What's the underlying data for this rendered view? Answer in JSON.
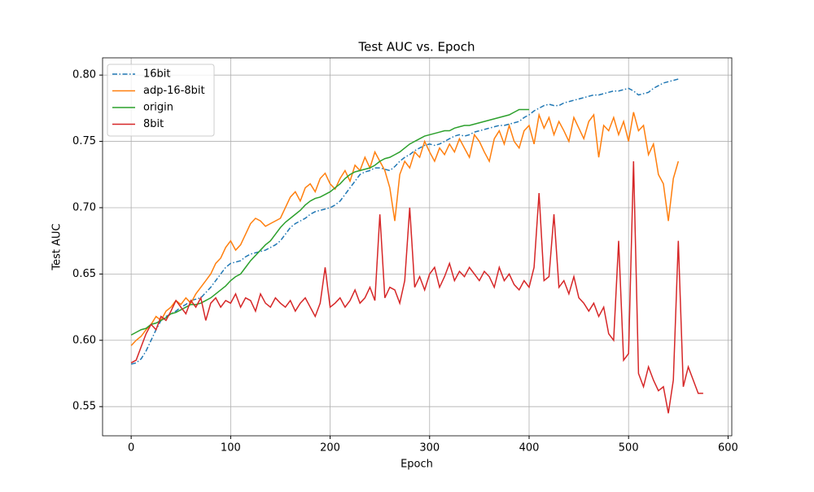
{
  "chart_data": {
    "type": "line",
    "title": "Test AUC vs. Epoch",
    "x_label": "Epoch",
    "y_label": "Test AUC",
    "x": [
      0,
      5,
      10,
      15,
      20,
      25,
      30,
      35,
      40,
      45,
      50,
      55,
      60,
      65,
      70,
      75,
      80,
      85,
      90,
      95,
      100,
      105,
      110,
      115,
      120,
      125,
      130,
      135,
      140,
      145,
      150,
      155,
      160,
      165,
      170,
      175,
      180,
      185,
      190,
      195,
      200,
      205,
      210,
      215,
      220,
      225,
      230,
      235,
      240,
      245,
      250,
      255,
      260,
      265,
      270,
      275,
      280,
      285,
      290,
      295,
      300,
      305,
      310,
      315,
      320,
      325,
      330,
      335,
      340,
      345,
      350,
      355,
      360,
      365,
      370,
      375,
      380,
      385,
      390,
      395,
      400,
      405,
      410,
      415,
      420,
      425,
      430,
      435,
      440,
      445,
      450,
      455,
      460,
      465,
      470,
      475,
      480,
      485,
      490,
      495,
      500,
      505,
      510,
      515,
      520,
      525,
      530,
      535,
      540,
      545,
      550,
      555,
      560,
      565,
      570,
      575
    ],
    "series": [
      {
        "name": "16bit",
        "color": "#1f77b4",
        "linestyle": "dashdot",
        "values": [
          0.582,
          0.583,
          0.586,
          0.592,
          0.6,
          0.608,
          0.615,
          0.618,
          0.62,
          0.622,
          0.625,
          0.627,
          0.63,
          0.631,
          0.632,
          0.636,
          0.64,
          0.645,
          0.65,
          0.655,
          0.658,
          0.659,
          0.66,
          0.663,
          0.665,
          0.666,
          0.667,
          0.668,
          0.67,
          0.672,
          0.675,
          0.68,
          0.685,
          0.688,
          0.69,
          0.692,
          0.695,
          0.697,
          0.698,
          0.699,
          0.7,
          0.702,
          0.705,
          0.71,
          0.715,
          0.72,
          0.725,
          0.727,
          0.728,
          0.73,
          0.73,
          0.729,
          0.728,
          0.731,
          0.735,
          0.738,
          0.74,
          0.743,
          0.745,
          0.747,
          0.748,
          0.747,
          0.748,
          0.75,
          0.752,
          0.754,
          0.755,
          0.754,
          0.755,
          0.757,
          0.758,
          0.759,
          0.76,
          0.761,
          0.762,
          0.762,
          0.763,
          0.764,
          0.765,
          0.768,
          0.77,
          0.773,
          0.775,
          0.777,
          0.778,
          0.777,
          0.777,
          0.779,
          0.78,
          0.781,
          0.782,
          0.783,
          0.784,
          0.785,
          0.785,
          0.786,
          0.787,
          0.788,
          0.788,
          0.789,
          0.79,
          0.788,
          0.785,
          0.786,
          0.787,
          0.79,
          0.792,
          0.794,
          0.795,
          0.796,
          0.797,
          null,
          null,
          null,
          null,
          null
        ]
      },
      {
        "name": "adp-16-8bit",
        "color": "#ff7f0e",
        "linestyle": "solid",
        "values": [
          0.596,
          0.6,
          0.603,
          0.608,
          0.612,
          0.618,
          0.615,
          0.622,
          0.625,
          0.63,
          0.627,
          0.632,
          0.628,
          0.635,
          0.64,
          0.645,
          0.65,
          0.658,
          0.662,
          0.67,
          0.675,
          0.668,
          0.672,
          0.68,
          0.688,
          0.692,
          0.69,
          0.686,
          0.688,
          0.69,
          0.692,
          0.7,
          0.708,
          0.712,
          0.705,
          0.715,
          0.718,
          0.712,
          0.722,
          0.726,
          0.718,
          0.714,
          0.722,
          0.728,
          0.72,
          0.732,
          0.728,
          0.738,
          0.73,
          0.742,
          0.735,
          0.728,
          0.715,
          0.69,
          0.725,
          0.735,
          0.73,
          0.742,
          0.738,
          0.75,
          0.742,
          0.735,
          0.745,
          0.74,
          0.748,
          0.742,
          0.752,
          0.745,
          0.738,
          0.755,
          0.75,
          0.742,
          0.735,
          0.752,
          0.758,
          0.748,
          0.762,
          0.75,
          0.745,
          0.758,
          0.762,
          0.748,
          0.77,
          0.76,
          0.768,
          0.755,
          0.765,
          0.758,
          0.75,
          0.768,
          0.76,
          0.752,
          0.765,
          0.77,
          0.738,
          0.762,
          0.758,
          0.768,
          0.755,
          0.765,
          0.75,
          0.772,
          0.758,
          0.762,
          0.74,
          0.748,
          0.725,
          0.718,
          0.69,
          0.722,
          0.735,
          null,
          null,
          null,
          null,
          null
        ]
      },
      {
        "name": "origin",
        "color": "#2ca02c",
        "linestyle": "solid",
        "values": [
          0.604,
          0.606,
          0.608,
          0.609,
          0.612,
          0.613,
          0.615,
          0.617,
          0.62,
          0.621,
          0.623,
          0.625,
          0.627,
          0.627,
          0.628,
          0.63,
          0.632,
          0.635,
          0.638,
          0.641,
          0.645,
          0.648,
          0.65,
          0.655,
          0.66,
          0.664,
          0.668,
          0.672,
          0.675,
          0.68,
          0.685,
          0.689,
          0.692,
          0.695,
          0.698,
          0.702,
          0.705,
          0.707,
          0.708,
          0.71,
          0.712,
          0.715,
          0.718,
          0.722,
          0.725,
          0.727,
          0.728,
          0.729,
          0.73,
          0.732,
          0.735,
          0.737,
          0.738,
          0.74,
          0.742,
          0.745,
          0.748,
          0.75,
          0.752,
          0.754,
          0.755,
          0.756,
          0.757,
          0.758,
          0.758,
          0.76,
          0.761,
          0.762,
          0.762,
          0.763,
          0.764,
          0.765,
          0.766,
          0.767,
          0.768,
          0.769,
          0.77,
          0.772,
          0.774,
          0.774,
          0.774,
          null,
          null,
          null,
          null,
          null,
          null,
          null,
          null,
          null,
          null,
          null,
          null,
          null,
          null,
          null,
          null,
          null,
          null,
          null,
          null,
          null,
          null,
          null,
          null,
          null,
          null,
          null,
          null,
          null,
          null,
          null,
          null,
          null,
          null,
          null
        ]
      },
      {
        "name": "8bit",
        "color": "#d62728",
        "linestyle": "solid",
        "values": [
          0.583,
          0.585,
          0.595,
          0.605,
          0.612,
          0.608,
          0.618,
          0.615,
          0.622,
          0.63,
          0.625,
          0.62,
          0.63,
          0.625,
          0.632,
          0.615,
          0.628,
          0.632,
          0.625,
          0.63,
          0.628,
          0.635,
          0.625,
          0.632,
          0.63,
          0.622,
          0.635,
          0.628,
          0.625,
          0.632,
          0.628,
          0.625,
          0.63,
          0.622,
          0.628,
          0.632,
          0.625,
          0.618,
          0.628,
          0.655,
          0.625,
          0.628,
          0.632,
          0.625,
          0.63,
          0.638,
          0.628,
          0.632,
          0.64,
          0.63,
          0.695,
          0.632,
          0.64,
          0.638,
          0.628,
          0.645,
          0.7,
          0.64,
          0.648,
          0.638,
          0.65,
          0.655,
          0.64,
          0.648,
          0.658,
          0.645,
          0.652,
          0.648,
          0.655,
          0.65,
          0.645,
          0.652,
          0.648,
          0.64,
          0.655,
          0.645,
          0.65,
          0.642,
          0.638,
          0.645,
          0.64,
          0.655,
          0.711,
          0.645,
          0.648,
          0.695,
          0.64,
          0.645,
          0.635,
          0.648,
          0.632,
          0.628,
          0.622,
          0.628,
          0.618,
          0.625,
          0.605,
          0.6,
          0.675,
          0.585,
          0.59,
          0.735,
          0.575,
          0.565,
          0.58,
          0.57,
          0.562,
          0.565,
          0.545,
          0.57,
          0.675,
          0.565,
          0.58,
          0.57,
          0.56,
          0.56
        ]
      }
    ],
    "xlim": [
      -28.75,
      603.75
    ],
    "ylim": [
      0.528,
      0.813
    ],
    "xticks": [
      0,
      100,
      200,
      300,
      400,
      500,
      600
    ],
    "yticks": [
      0.55,
      {
        "value": 0.6,
        "label": "0.60"
      },
      0.65,
      {
        "value": 0.7,
        "label": "0.70"
      },
      0.75,
      {
        "value": 0.8,
        "label": "0.80"
      }
    ],
    "grid": true,
    "legend": "upper left"
  }
}
